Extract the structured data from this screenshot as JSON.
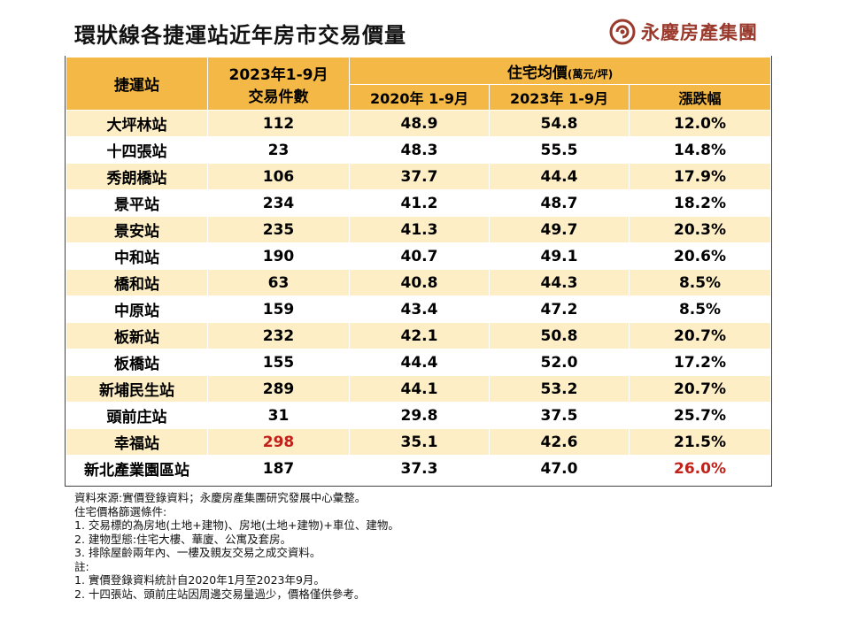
{
  "title": "環狀線各捷運站近年房市交易價量",
  "logo": {
    "text": "永慶房產集團",
    "mark": "yungching-logo-icon",
    "color": "#9a3a2c"
  },
  "table": {
    "header": {
      "station": "捷運站",
      "count_line1": "2023年1-9月",
      "count_line2": "交易件數",
      "price_group": "住宅均價",
      "price_unit": "(萬元/坪)",
      "col_2020": "2020年 1-9月",
      "col_2023": "2023年 1-9月",
      "col_change": "漲跌幅"
    },
    "rows": [
      {
        "station": "大坪林站",
        "count": "112",
        "p2020": "48.9",
        "p2023": "54.8",
        "change": "12.0%"
      },
      {
        "station": "十四張站",
        "count": "23",
        "p2020": "48.3",
        "p2023": "55.5",
        "change": "14.8%"
      },
      {
        "station": "秀朗橋站",
        "count": "106",
        "p2020": "37.7",
        "p2023": "44.4",
        "change": "17.9%"
      },
      {
        "station": "景平站",
        "count": "234",
        "p2020": "41.2",
        "p2023": "48.7",
        "change": "18.2%"
      },
      {
        "station": "景安站",
        "count": "235",
        "p2020": "41.3",
        "p2023": "49.7",
        "change": "20.3%"
      },
      {
        "station": "中和站",
        "count": "190",
        "p2020": "40.7",
        "p2023": "49.1",
        "change": "20.6%"
      },
      {
        "station": "橋和站",
        "count": "63",
        "p2020": "40.8",
        "p2023": "44.3",
        "change": "8.5%"
      },
      {
        "station": "中原站",
        "count": "159",
        "p2020": "43.4",
        "p2023": "47.2",
        "change": "8.5%"
      },
      {
        "station": "板新站",
        "count": "232",
        "p2020": "42.1",
        "p2023": "50.8",
        "change": "20.7%"
      },
      {
        "station": "板橋站",
        "count": "155",
        "p2020": "44.4",
        "p2023": "52.0",
        "change": "17.2%"
      },
      {
        "station": "新埔民生站",
        "count": "289",
        "p2020": "44.1",
        "p2023": "53.2",
        "change": "20.7%"
      },
      {
        "station": "頭前庄站",
        "count": "31",
        "p2020": "29.8",
        "p2023": "37.5",
        "change": "25.7%"
      },
      {
        "station": "幸福站",
        "count": "298",
        "p2020": "35.1",
        "p2023": "42.6",
        "change": "21.5%"
      },
      {
        "station": "新北產業園區站",
        "count": "187",
        "p2020": "37.3",
        "p2023": "47.0",
        "change": "26.0%"
      }
    ],
    "highlight_color": "#c0221a",
    "header_color": "#f3b845",
    "stripe_color": "#fdeec5"
  },
  "notes": [
    "資料來源:實價登錄資料；永慶房產集團研究發展中心彙整。",
    "住宅價格篩選條件:",
    "1. 交易標的為房地(土地+建物)、房地(土地+建物)+車位、建物。",
    "2. 建物型態:住宅大樓、華廈、公寓及套房。",
    "3. 排除屋齡兩年內、一樓及親友交易之成交資料。",
    "註:",
    "1. 實價登錄資料統計自2020年1月至2023年9月。",
    "2. 十四張站、頭前庄站因周邊交易量過少，價格僅供參考。"
  ]
}
